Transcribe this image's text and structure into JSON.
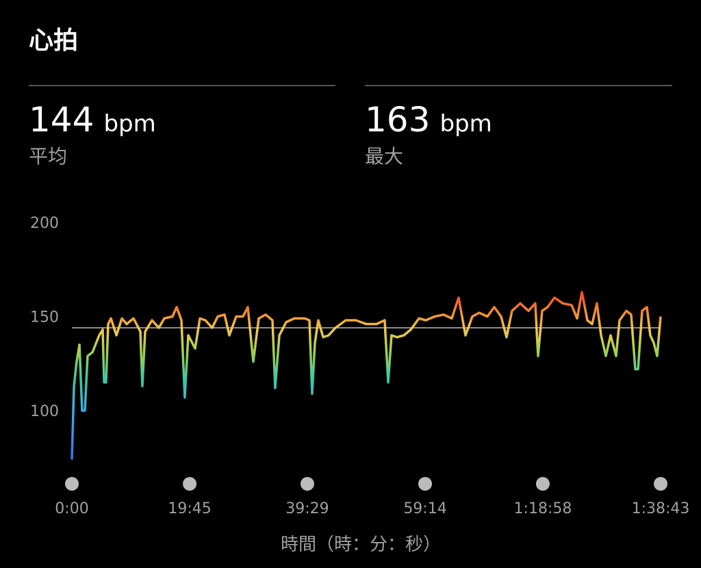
{
  "title": "心拍",
  "stats": [
    {
      "value": 144,
      "unit": "bpm",
      "label": "平均"
    },
    {
      "value": 163,
      "unit": "bpm",
      "label": "最大"
    }
  ],
  "chart_data": {
    "type": "line",
    "x_label": "時間（時：分：秒）",
    "x": [
      0,
      21,
      48,
      76,
      103,
      131,
      158,
      207,
      275,
      310,
      324,
      344,
      365,
      393,
      448,
      503,
      551,
      620,
      689,
      709,
      737,
      806,
      875,
      930,
      1012,
      1054,
      1102,
      1136,
      1171,
      1240,
      1288,
      1343,
      1412,
      1467,
      1536,
      1584,
      1653,
      1722,
      1770,
      1825,
      1880,
      1949,
      2018,
      2045,
      2087,
      2156,
      2238,
      2342,
      2390,
      2417,
      2445,
      2479,
      2528,
      2583,
      2652,
      2755,
      2858,
      2961,
      3065,
      3147,
      3182,
      3216,
      3271,
      3340,
      3409,
      3492,
      3561,
      3650,
      3740,
      3822,
      3891,
      3960,
      4029,
      4098,
      4180,
      4249,
      4318,
      4373,
      4428,
      4511,
      4594,
      4662,
      4690,
      4731,
      4786,
      4855,
      4938,
      5028,
      5083,
      5131,
      5186,
      5234,
      5282,
      5324,
      5372,
      5420,
      5475,
      5510,
      5579,
      5627,
      5668,
      5696,
      5737,
      5785,
      5819,
      5854,
      5888,
      5923
    ],
    "values": [
      74,
      113,
      126,
      135,
      100,
      100,
      129,
      131,
      140,
      143,
      115,
      115,
      146,
      149,
      140,
      149,
      146,
      149,
      142,
      113,
      142,
      148,
      144,
      149,
      150,
      155,
      148,
      107,
      140,
      133,
      149,
      148,
      144,
      150,
      151,
      140,
      150,
      150,
      155,
      126,
      149,
      151,
      148,
      112,
      140,
      147,
      149,
      149,
      148,
      109,
      136,
      148,
      139,
      140,
      144,
      148,
      148,
      146,
      146,
      148,
      115,
      140,
      139,
      140,
      143,
      149,
      148,
      150,
      151,
      149,
      160,
      140,
      150,
      152,
      150,
      155,
      150,
      139,
      153,
      157,
      153,
      157,
      129,
      153,
      155,
      160,
      157,
      156,
      149,
      163,
      148,
      146,
      157,
      140,
      129,
      140,
      129,
      148,
      153,
      151,
      122,
      122,
      153,
      155,
      140,
      136,
      129,
      150
    ],
    "xlim": [
      0,
      5923
    ],
    "ylim": [
      70,
      200
    ],
    "yticks": [
      100,
      150,
      200
    ],
    "xticks": [
      {
        "value": 0,
        "label": "0:00"
      },
      {
        "value": 1185,
        "label": "19:45"
      },
      {
        "value": 2369,
        "label": "39:29"
      },
      {
        "value": 3554,
        "label": "59:14"
      },
      {
        "value": 4738,
        "label": "1:18:58"
      },
      {
        "value": 5923,
        "label": "1:38:43"
      }
    ]
  }
}
